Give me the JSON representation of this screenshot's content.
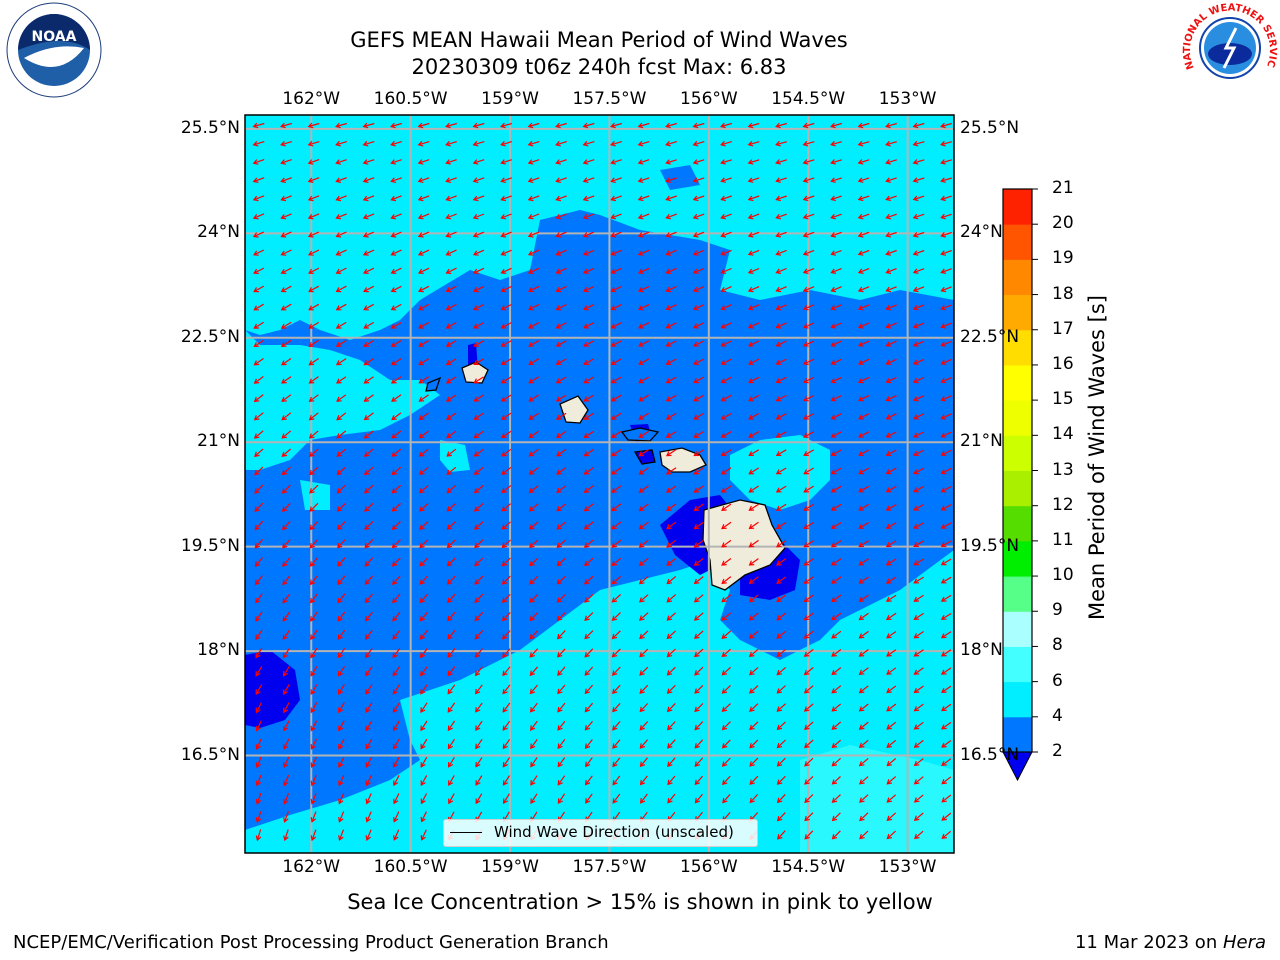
{
  "title": {
    "line1": "GEFS MEAN Hawaii Mean Period of Wind Waves",
    "line2": "20230309 t06z 240h fcst   Max: 6.83"
  },
  "map": {
    "lon_labels": [
      "162°W",
      "160.5°W",
      "159°W",
      "157.5°W",
      "156°W",
      "154.5°W",
      "153°W"
    ],
    "lon_values": [
      -162,
      -160.5,
      -159,
      -157.5,
      -156,
      -154.5,
      -153
    ],
    "lat_labels": [
      "25.5°N",
      "24°N",
      "22.5°N",
      "21°N",
      "19.5°N",
      "18°N",
      "16.5°N"
    ],
    "lat_values": [
      25.5,
      24,
      22.5,
      21,
      19.5,
      18,
      16.5
    ],
    "extent": {
      "lon_min": -163,
      "lon_max": -152.3,
      "lat_min": 15.1,
      "lat_max": 25.7
    },
    "legend_text": "Wind Wave Direction (unscaled)",
    "arrow_color": "#ff0000",
    "land_color": "#efecdc",
    "grid_color": "#b4b4b4"
  },
  "colorbar": {
    "label": "Mean Period of Wind Waves [s]",
    "ticks": [
      "2",
      "4",
      "6",
      "8",
      "9",
      "10",
      "11",
      "12",
      "13",
      "14",
      "15",
      "16",
      "17",
      "18",
      "19",
      "20",
      "21"
    ],
    "colors": [
      "#0077ff",
      "#00eeff",
      "#44ffff",
      "#aaffff",
      "#55ff88",
      "#00ee00",
      "#55dd00",
      "#aaee00",
      "#ccff00",
      "#eeff00",
      "#ffff00",
      "#ffdd00",
      "#ffaa00",
      "#ff8800",
      "#ff5500",
      "#ff2200"
    ],
    "under_color": "#0000ee"
  },
  "caption": "Sea Ice Concentration > 15% is shown in pink to yellow",
  "footer": {
    "left": "NCEP/EMC/Verification Post Processing Product Generation Branch",
    "right_prefix": "11 Mar 2023 on ",
    "right_italic": "Hera"
  },
  "logos": {
    "noaa_text": "NOAA",
    "nws_text": "NATIONAL WEATHER SERVICE"
  }
}
